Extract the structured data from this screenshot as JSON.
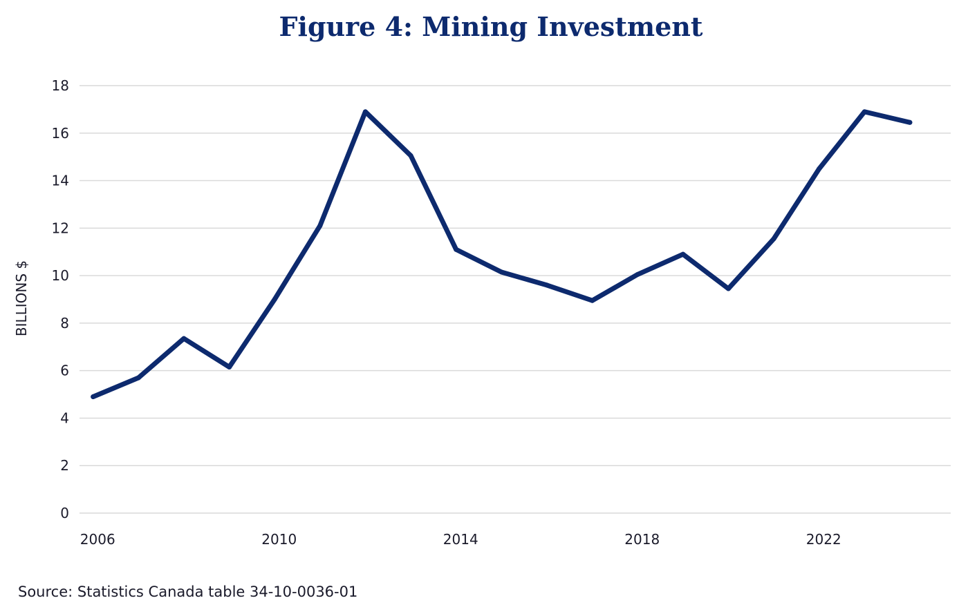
{
  "chart_data": {
    "type": "line",
    "title": "Figure 4: Mining Investment",
    "xlabel": "",
    "ylabel": "BILLIONS $",
    "source": "Source: Statistics Canada table 34-10-0036-01",
    "ylim": [
      0,
      18
    ],
    "yticks": [
      0,
      2,
      4,
      6,
      8,
      10,
      12,
      14,
      16,
      18
    ],
    "xlim": [
      2005.6,
      2024.8
    ],
    "xticks": [
      2006,
      2010,
      2014,
      2018,
      2022
    ],
    "xtick_labels": [
      "2006",
      "2010",
      "2014",
      "2018",
      "2022"
    ],
    "grid": true,
    "line_color": "#0d2a6e",
    "series": [
      {
        "x": [
          2005.9,
          2006.9,
          2007.9,
          2008.9,
          2009.9,
          2010.9,
          2011.9,
          2012.9,
          2013.9,
          2014.9,
          2015.9,
          2016.9,
          2017.9,
          2018.9,
          2019.9,
          2020.9,
          2021.9,
          2022.9,
          2023.9
        ],
        "values": [
          4.9,
          5.7,
          7.35,
          6.15,
          9.0,
          12.1,
          16.9,
          15.05,
          11.1,
          10.15,
          9.6,
          8.95,
          10.05,
          10.9,
          9.45,
          11.55,
          14.5,
          16.9,
          16.45
        ]
      }
    ]
  }
}
